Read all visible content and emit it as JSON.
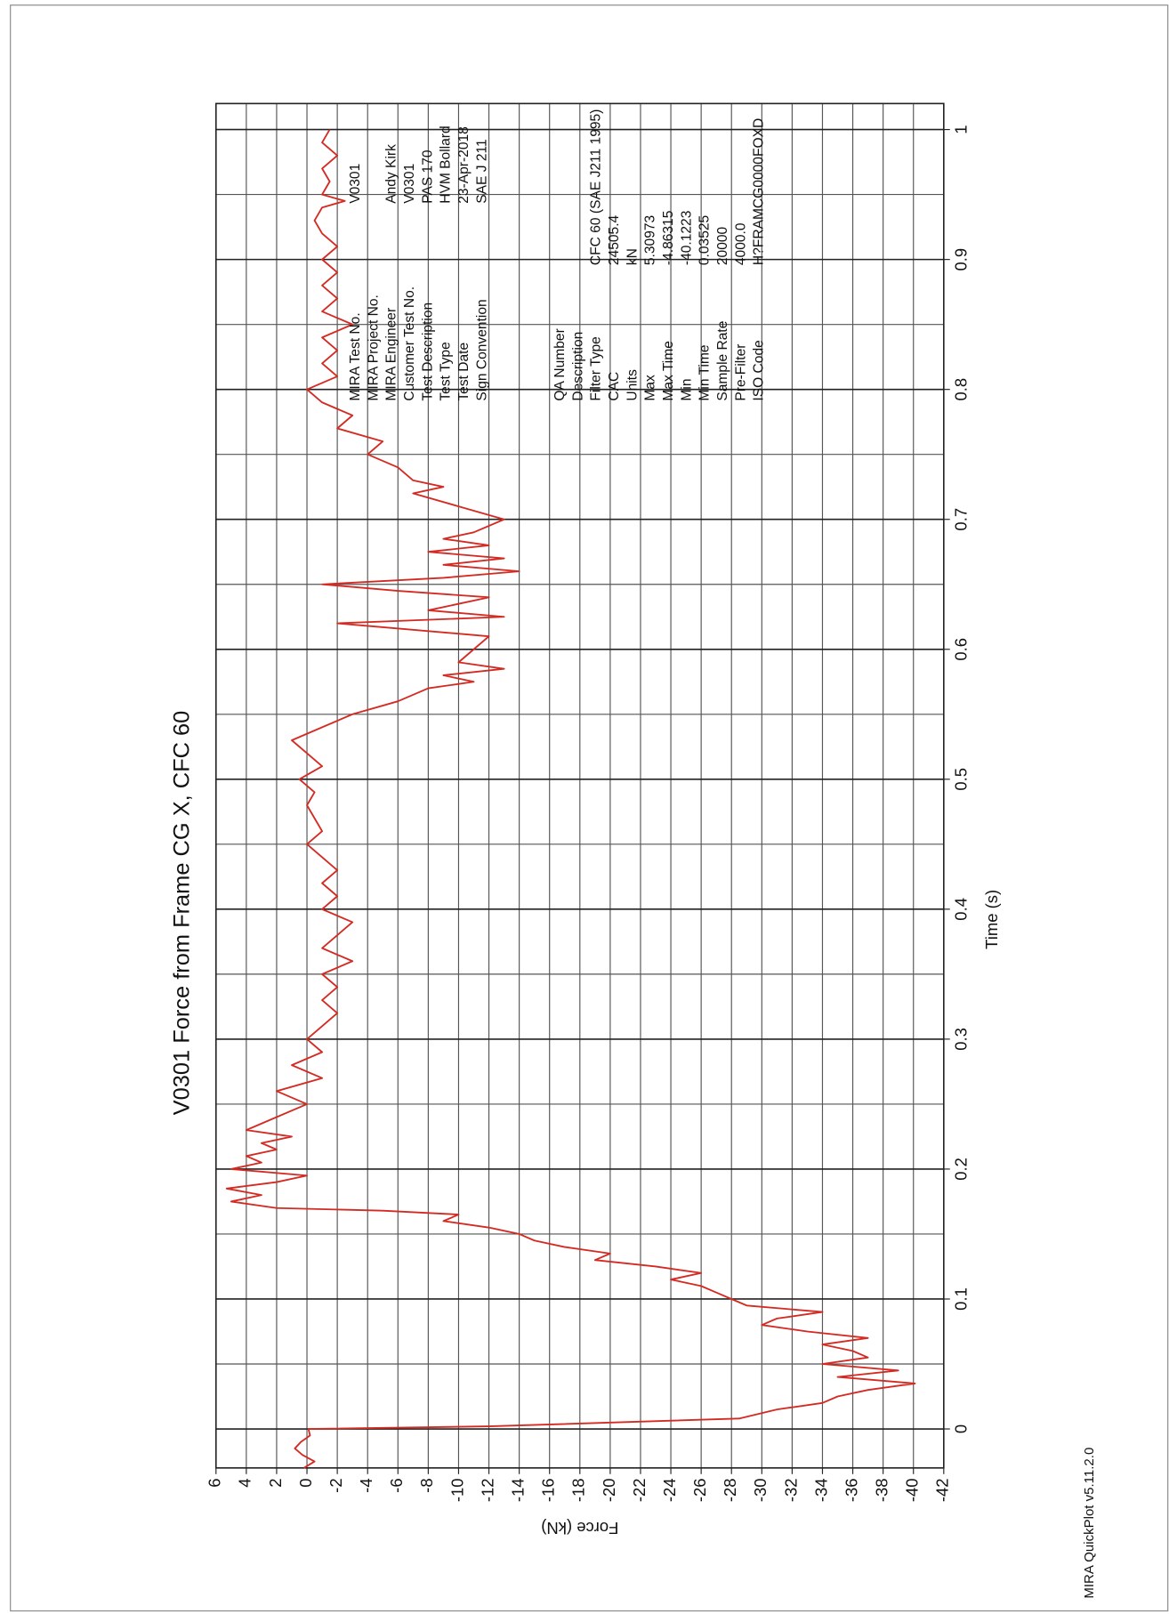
{
  "chart_data": {
    "type": "line",
    "title": "V0301 Force from Frame CG X, CFC 60",
    "x_label": "Time (s)",
    "y_label": "Force (kN)",
    "xlim": [
      -0.03,
      1.02
    ],
    "ylim": [
      -42,
      6
    ],
    "xticks": [
      0,
      0.1,
      0.2,
      0.3,
      0.4,
      0.5,
      0.6,
      0.7,
      0.8,
      0.9,
      1
    ],
    "x_minor_ticks": [
      0.05,
      0.15,
      0.25,
      0.35,
      0.45,
      0.55,
      0.65,
      0.75,
      0.85,
      0.95
    ],
    "yticks": [
      6,
      4,
      2,
      0,
      -2,
      -4,
      -6,
      -8,
      -10,
      -12,
      -14,
      -16,
      -18,
      -20,
      -22,
      -24,
      -26,
      -28,
      -30,
      -32,
      -34,
      -36,
      -38,
      -40,
      -42
    ],
    "grid": true,
    "series": [
      {
        "name": "Force from Frame CG X",
        "color": "#d42a22",
        "x": [
          -0.03,
          -0.025,
          -0.02,
          -0.015,
          -0.01,
          -0.005,
          0,
          0.002,
          0.008,
          0.015,
          0.02,
          0.025,
          0.03,
          0.035,
          0.04,
          0.045,
          0.05,
          0.055,
          0.06,
          0.065,
          0.07,
          0.075,
          0.08,
          0.085,
          0.09,
          0.095,
          0.1,
          0.105,
          0.11,
          0.115,
          0.12,
          0.125,
          0.13,
          0.135,
          0.14,
          0.145,
          0.15,
          0.155,
          0.16,
          0.165,
          0.168,
          0.17,
          0.175,
          0.18,
          0.185,
          0.19,
          0.195,
          0.2,
          0.205,
          0.21,
          0.215,
          0.22,
          0.225,
          0.23,
          0.24,
          0.25,
          0.26,
          0.27,
          0.28,
          0.29,
          0.3,
          0.31,
          0.32,
          0.33,
          0.34,
          0.35,
          0.36,
          0.37,
          0.38,
          0.39,
          0.4,
          0.41,
          0.42,
          0.43,
          0.44,
          0.45,
          0.46,
          0.47,
          0.48,
          0.49,
          0.5,
          0.51,
          0.52,
          0.53,
          0.54,
          0.55,
          0.56,
          0.57,
          0.575,
          0.58,
          0.585,
          0.59,
          0.6,
          0.61,
          0.62,
          0.625,
          0.63,
          0.64,
          0.645,
          0.65,
          0.655,
          0.66,
          0.665,
          0.67,
          0.675,
          0.68,
          0.685,
          0.69,
          0.7,
          0.71,
          0.72,
          0.725,
          0.73,
          0.74,
          0.75,
          0.76,
          0.77,
          0.78,
          0.79,
          0.8,
          0.81,
          0.82,
          0.83,
          0.84,
          0.85,
          0.86,
          0.87,
          0.88,
          0.89,
          0.9,
          0.91,
          0.92,
          0.93,
          0.94,
          0.945,
          0.95,
          0.96,
          0.97,
          0.98,
          0.99,
          1.0
        ],
        "values": [
          0.2,
          -0.5,
          0.3,
          0.8,
          0.4,
          -0.2,
          -0.1,
          -12,
          -28.5,
          -31,
          -34,
          -35,
          -37,
          -40.1,
          -35,
          -39,
          -34,
          -37,
          -36,
          -34,
          -37,
          -33,
          -30,
          -31,
          -34,
          -29,
          -28,
          -27,
          -26,
          -24,
          -26,
          -23,
          -19,
          -20,
          -17,
          -15,
          -14,
          -12,
          -9,
          -10,
          -5,
          2,
          5,
          3,
          5.3,
          2,
          0,
          5,
          3,
          4,
          2,
          3,
          1,
          4,
          2,
          0,
          2,
          -1,
          1,
          -1,
          0,
          -1,
          -2,
          -1,
          -2,
          -1,
          -3,
          -1,
          -2,
          -3,
          -1,
          -2,
          -1,
          -2,
          -1,
          0,
          -1,
          -0.5,
          0,
          -0.5,
          0.5,
          -1,
          0,
          1,
          -1,
          -3,
          -6,
          -8,
          -11,
          -9,
          -13,
          -10,
          -11,
          -12,
          -2,
          -13,
          -8,
          -12,
          -6,
          -1,
          -9,
          -14,
          -9,
          -13,
          -8,
          -12,
          -9,
          -11,
          -13,
          -10,
          -7,
          -9,
          -7,
          -6,
          -4,
          -5,
          -2,
          -3,
          -1,
          0,
          -2,
          -1,
          -2,
          -1,
          -3,
          -1,
          -2,
          -1,
          -2,
          -1,
          -2,
          -1,
          -0.5,
          -1,
          -2.5,
          -1,
          -1.5,
          -1,
          -2,
          -1,
          -1.5
        ]
      }
    ]
  },
  "info_block_1": [
    {
      "label": "MIRA Test No.",
      "value": "V0301"
    },
    {
      "label": "MIRA Project No."
    },
    {
      "label": "MIRA Engineer",
      "value": "Andy Kirk"
    },
    {
      "label": "Customer Test No.",
      "value": "V0301"
    },
    {
      "label": "Test Description",
      "value": "PAS 170"
    },
    {
      "label": "Test Type",
      "value": "HVM Bollard"
    },
    {
      "label": "Test Date",
      "value": "23-Apr-2018"
    },
    {
      "label": "Sign Convention",
      "value": "SAE J 211"
    }
  ],
  "info_block_2": [
    {
      "label": "QA Number"
    },
    {
      "label": "Description"
    },
    {
      "label": "Filter Type",
      "value": "CFC 60 (SAE J211 1995)"
    },
    {
      "label": "CAC",
      "value": "24505.4"
    },
    {
      "label": "Units",
      "value": "kN"
    },
    {
      "label": "Max",
      "value": "5.30973"
    },
    {
      "label": "Max Time",
      "value": "-4.86315"
    },
    {
      "label": "Min",
      "value": "-40.1223"
    },
    {
      "label": "Min Time",
      "value": "0.03525"
    },
    {
      "label": "Sample Rate",
      "value": "20000"
    },
    {
      "label": "Pre-Filter",
      "value": "4000.0"
    },
    {
      "label": "ISO Code",
      "value": "H?FRAMCG0000FOXD"
    }
  ],
  "footer": "MIRA QuickPlot  v5.11.2.0"
}
